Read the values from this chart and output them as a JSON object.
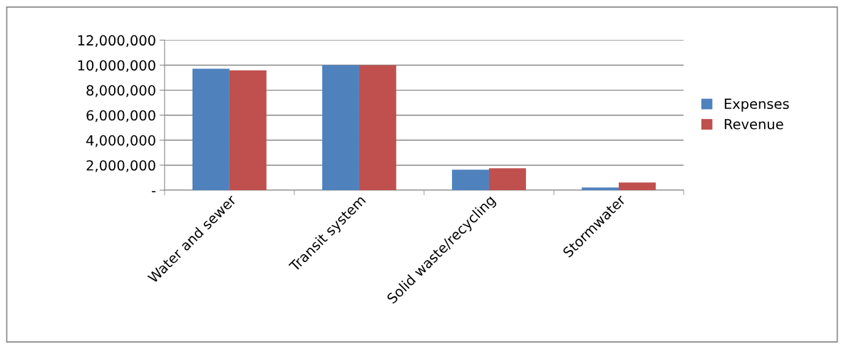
{
  "chart_data": {
    "type": "bar",
    "categories": [
      "Water and sewer",
      "Transit system",
      "Solid waste/recycling",
      "Stormwater"
    ],
    "series": [
      {
        "name": "Expenses",
        "color": "#4f81bd",
        "values": [
          9710000,
          10000000,
          1640000,
          210000
        ]
      },
      {
        "name": "Revenue",
        "color": "#c0504d",
        "values": [
          9590000,
          10000000,
          1750000,
          610000
        ]
      }
    ],
    "ylim": [
      0,
      12000000
    ],
    "yticks": [
      {
        "value": 0,
        "label": "-"
      },
      {
        "value": 2000000,
        "label": "2,000,000"
      },
      {
        "value": 4000000,
        "label": "4,000,000"
      },
      {
        "value": 6000000,
        "label": "6,000,000"
      },
      {
        "value": 8000000,
        "label": "8,000,000"
      },
      {
        "value": 10000000,
        "label": "10,000,000"
      },
      {
        "value": 12000000,
        "label": "12,000,000"
      }
    ],
    "grid": "y",
    "legend": "right"
  }
}
